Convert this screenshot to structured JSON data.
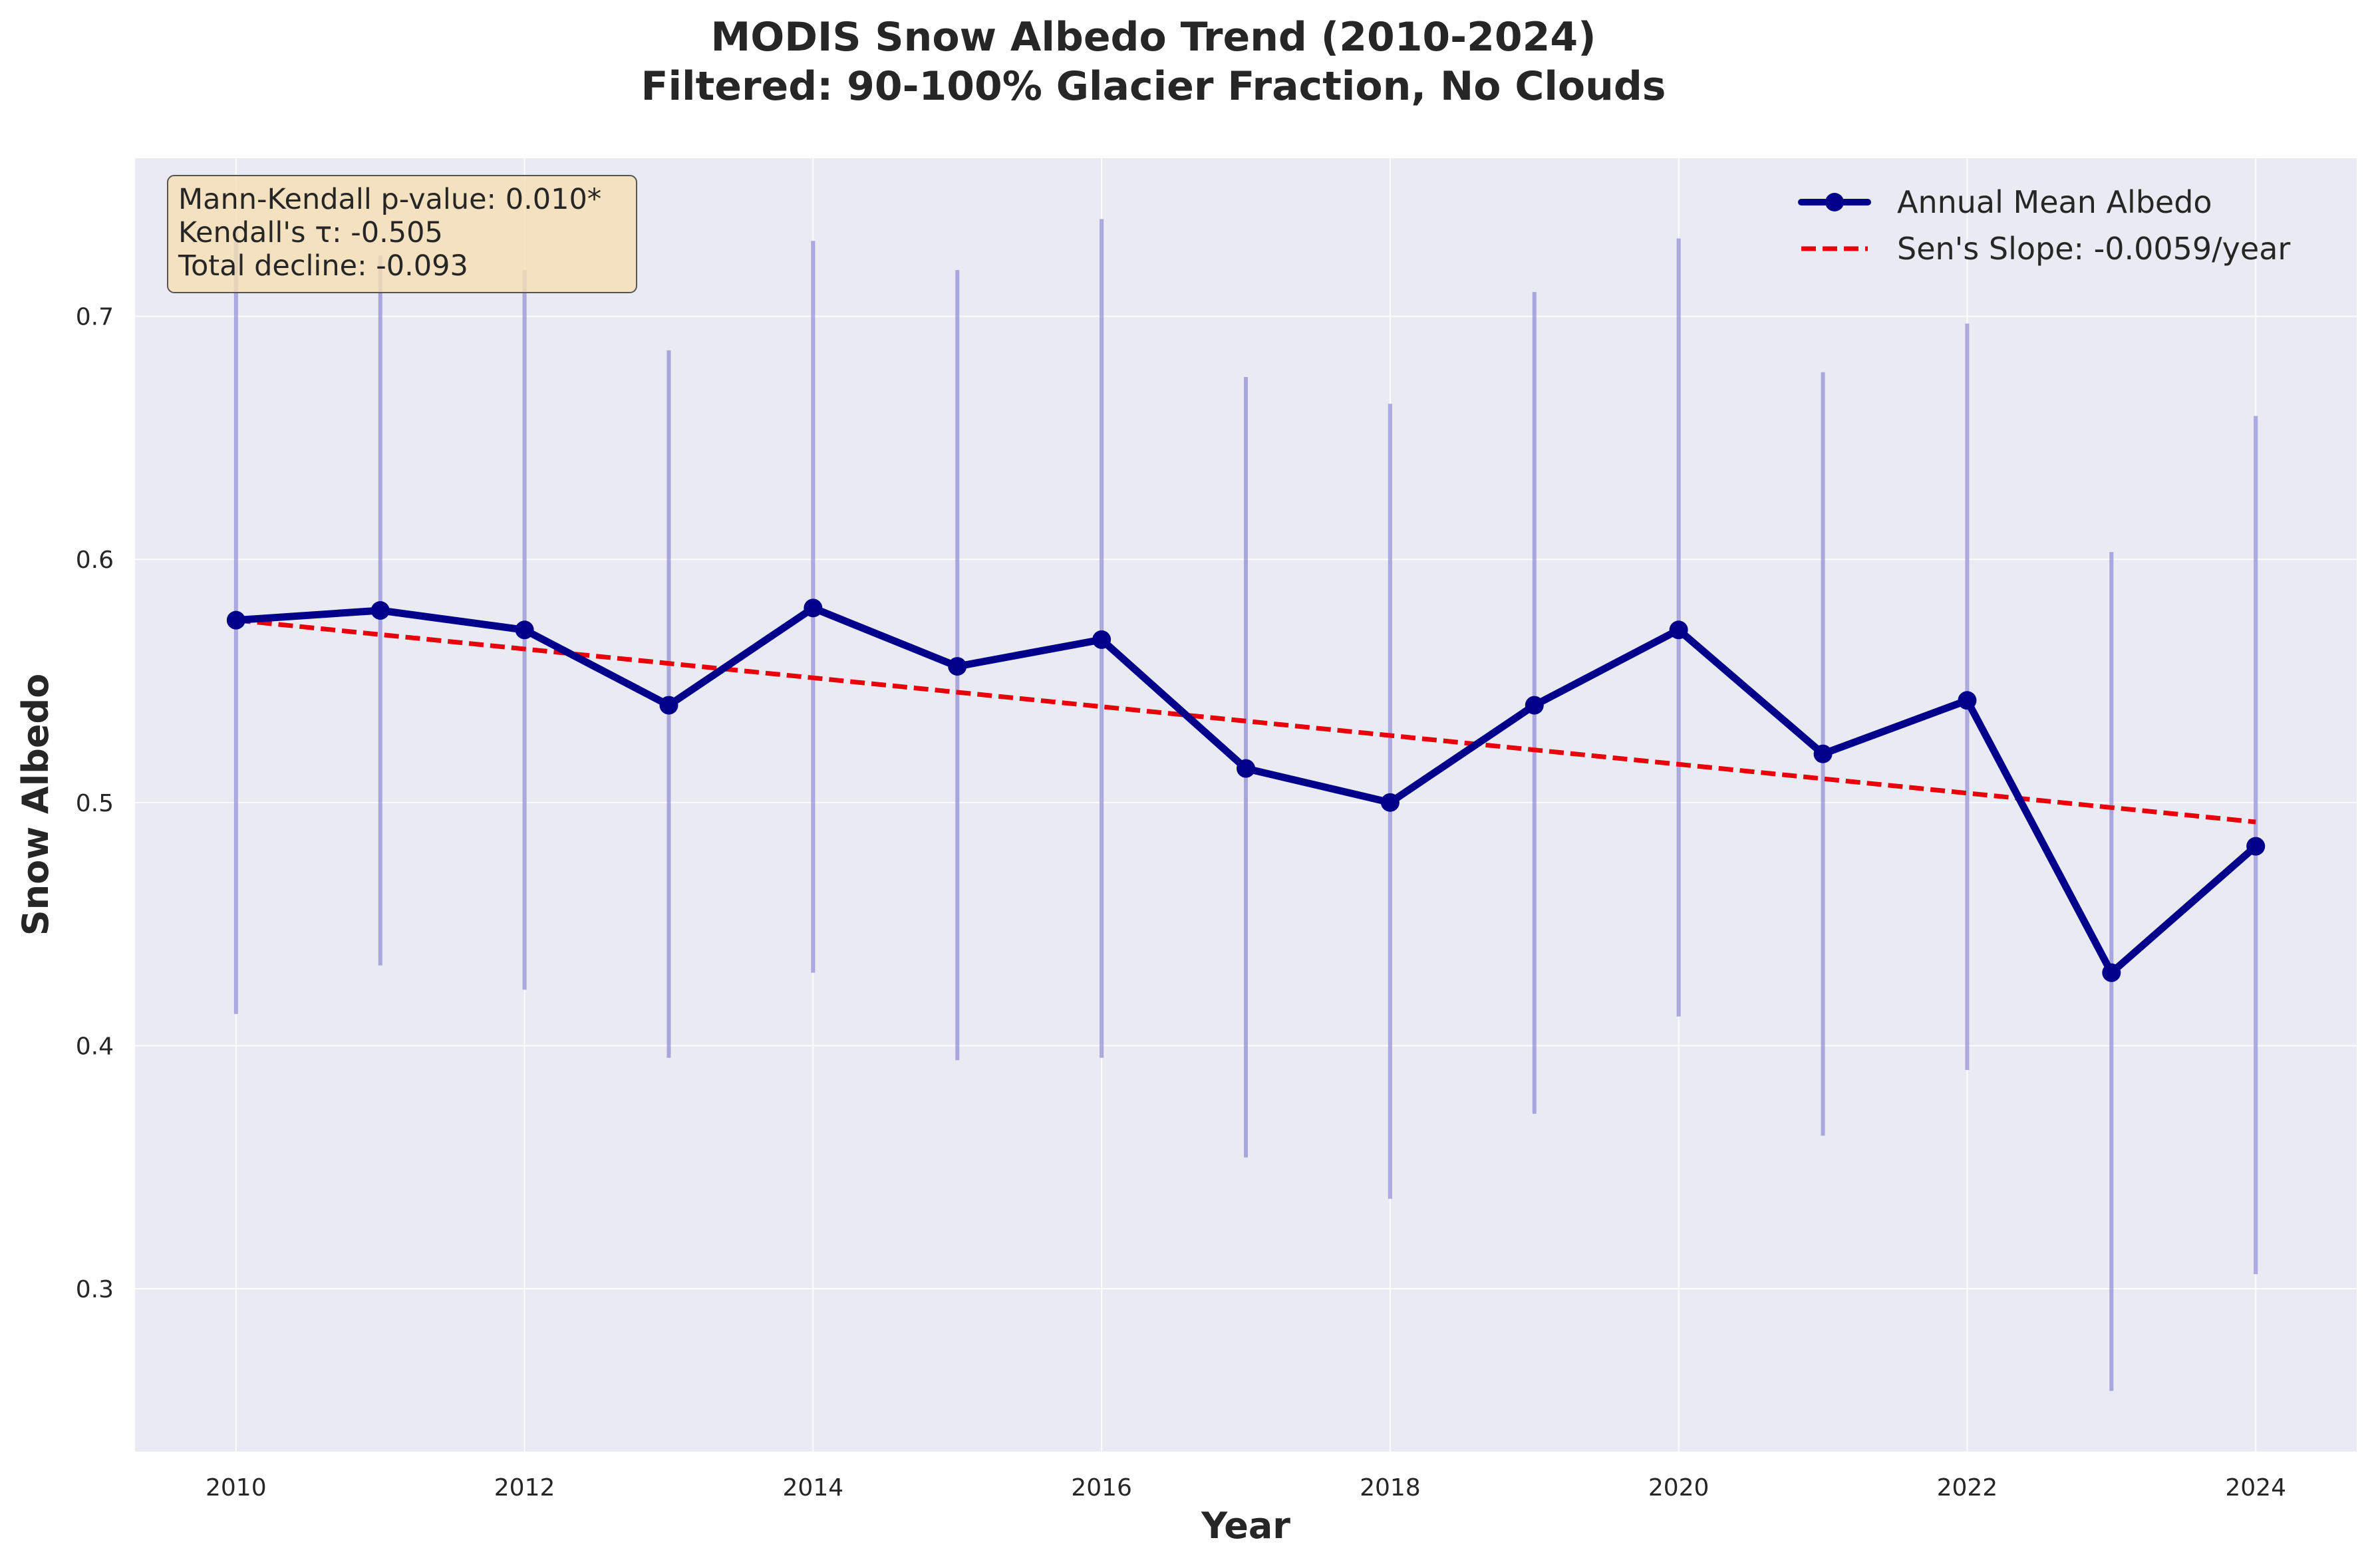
{
  "chart_data": {
    "type": "line",
    "title_line1": "MODIS Snow Albedo Trend (2010-2024)",
    "title_line2": "Filtered: 90-100% Glacier Fraction, No Clouds",
    "xlabel": "Year",
    "ylabel": "Snow Albedo",
    "xlim": [
      2009.3,
      2024.7
    ],
    "ylim": [
      0.233,
      0.765
    ],
    "x_ticks": [
      2010,
      2012,
      2014,
      2016,
      2018,
      2020,
      2022,
      2024
    ],
    "x_tick_labels": [
      "2010",
      "2012",
      "2014",
      "2016",
      "2018",
      "2020",
      "2022",
      "2024"
    ],
    "y_ticks": [
      0.3,
      0.4,
      0.5,
      0.6,
      0.7
    ],
    "y_tick_labels": [
      "0.3",
      "0.4",
      "0.5",
      "0.6",
      "0.7"
    ],
    "grid": true,
    "x": [
      2010,
      2011,
      2012,
      2013,
      2014,
      2015,
      2016,
      2017,
      2018,
      2019,
      2020,
      2021,
      2022,
      2023,
      2024
    ],
    "series": [
      {
        "name": "Annual Mean Albedo",
        "color": "#00008b",
        "values": [
          0.575,
          0.579,
          0.571,
          0.54,
          0.58,
          0.556,
          0.567,
          0.514,
          0.5,
          0.54,
          0.571,
          0.52,
          0.542,
          0.43,
          0.482
        ],
        "error_low": [
          0.413,
          0.433,
          0.423,
          0.395,
          0.43,
          0.394,
          0.395,
          0.354,
          0.337,
          0.372,
          0.412,
          0.363,
          0.39,
          0.258,
          0.306
        ],
        "error_high": [
          0.737,
          0.725,
          0.719,
          0.686,
          0.731,
          0.719,
          0.74,
          0.675,
          0.664,
          0.71,
          0.732,
          0.677,
          0.697,
          0.603,
          0.659
        ],
        "error_color": "#7b78cf"
      },
      {
        "name": "Sen's Slope: -0.0059/year",
        "color": "#e8000b",
        "style": "dashed",
        "start": [
          2010,
          0.575
        ],
        "end": [
          2024,
          0.492
        ]
      }
    ],
    "legend_position": "upper right",
    "stats_box": {
      "line1": "Mann-Kendall p-value: 0.010*",
      "line2": "Kendall's τ: -0.505",
      "line3": "Total decline: -0.093",
      "background": "#f5deb3"
    },
    "plot_background": "#eaeaf2"
  }
}
